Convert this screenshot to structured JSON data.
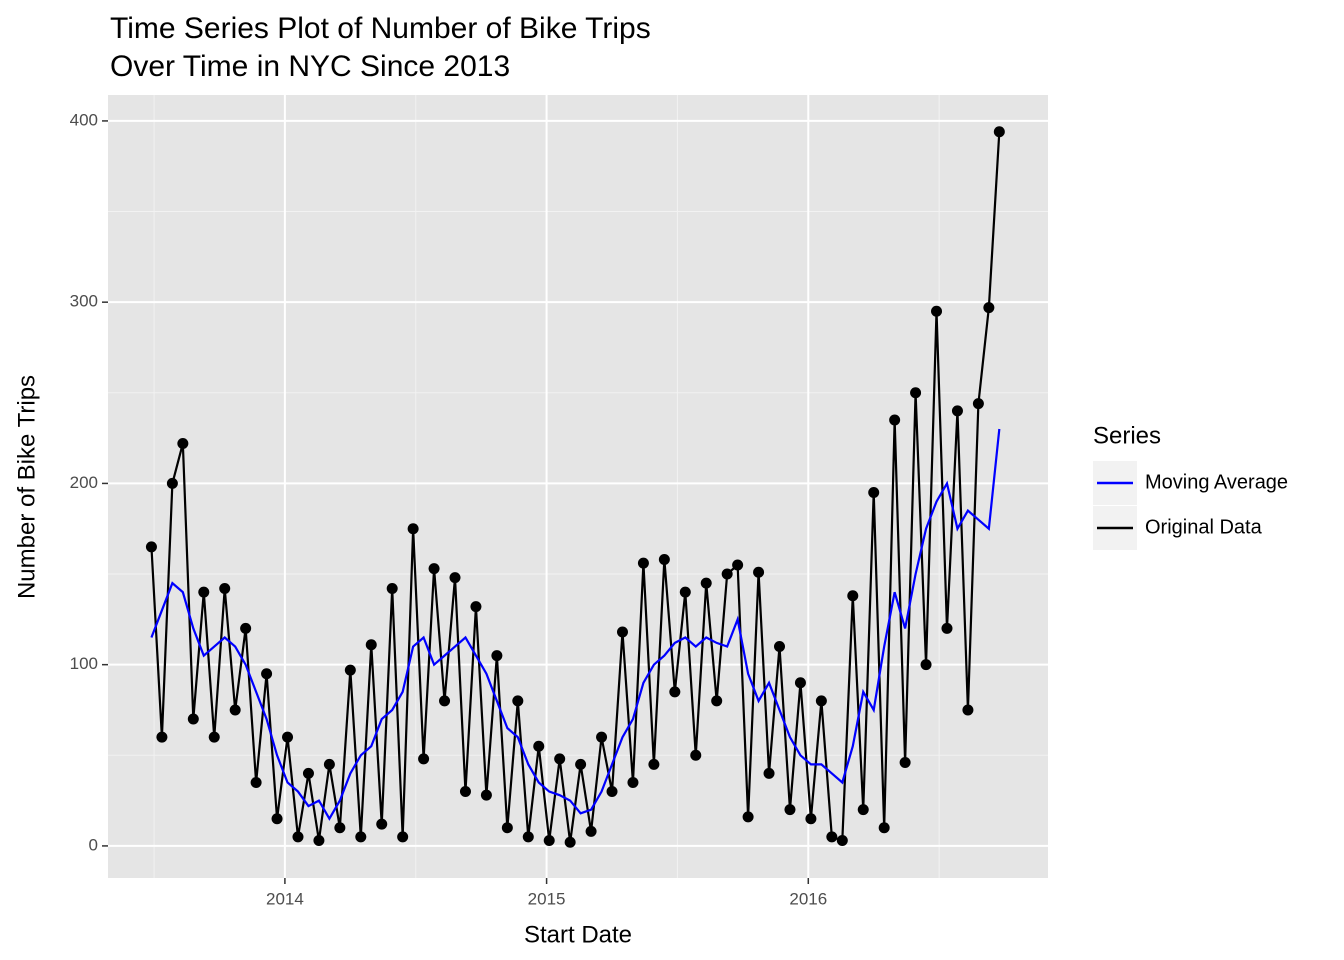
{
  "chart_data": {
    "type": "line",
    "title": [
      "Time Series Plot of Number of Bike Trips",
      " Over Time in NYC Since 2013"
    ],
    "x_label": "Start Date",
    "y_label": "Number of Bike Trips",
    "legend_title": "Series",
    "legend_position": "right",
    "grid": true,
    "xlim": [
      2013.324,
      2016.916
    ],
    "xticks": [
      2014,
      2015,
      2016
    ],
    "ylim": [
      -17.7,
      414.3
    ],
    "yticks": [
      0,
      100,
      200,
      300,
      400
    ],
    "x": [
      2013.49,
      2013.53,
      2013.57,
      2013.61,
      2013.65,
      2013.69,
      2013.73,
      2013.77,
      2013.81,
      2013.85,
      2013.89,
      2013.93,
      2013.97,
      2014.01,
      2014.05,
      2014.09,
      2014.13,
      2014.17,
      2014.21,
      2014.25,
      2014.29,
      2014.33,
      2014.37,
      2014.41,
      2014.45,
      2014.49,
      2014.53,
      2014.57,
      2014.61,
      2014.65,
      2014.69,
      2014.73,
      2014.77,
      2014.81,
      2014.85,
      2014.89,
      2014.93,
      2014.97,
      2015.01,
      2015.05,
      2015.09,
      2015.13,
      2015.17,
      2015.21,
      2015.25,
      2015.29,
      2015.33,
      2015.37,
      2015.41,
      2015.45,
      2015.49,
      2015.53,
      2015.57,
      2015.61,
      2015.65,
      2015.69,
      2015.73,
      2015.77,
      2015.81,
      2015.85,
      2015.89,
      2015.93,
      2015.97,
      2016.01,
      2016.05,
      2016.09,
      2016.13,
      2016.17,
      2016.21,
      2016.25,
      2016.29,
      2016.33,
      2016.37,
      2016.41,
      2016.45,
      2016.49,
      2016.53,
      2016.57,
      2016.61,
      2016.65,
      2016.69,
      2016.73
    ],
    "series": [
      {
        "name": "Moving Average",
        "color": "#0000ff",
        "markers": false,
        "values": [
          115,
          130,
          145,
          140,
          120,
          105,
          110,
          115,
          110,
          100,
          85,
          70,
          50,
          35,
          30,
          22,
          25,
          15,
          25,
          40,
          50,
          55,
          70,
          75,
          85,
          110,
          115,
          100,
          105,
          110,
          115,
          105,
          95,
          80,
          65,
          60,
          45,
          35,
          30,
          28,
          25,
          18,
          20,
          30,
          45,
          60,
          70,
          90,
          100,
          105,
          112,
          115,
          110,
          115,
          112,
          110,
          125,
          95,
          80,
          90,
          75,
          60,
          50,
          45,
          45,
          40,
          35,
          55,
          85,
          75,
          110,
          140,
          120,
          150,
          175,
          190,
          200,
          175,
          185,
          180,
          175,
          230
        ]
      },
      {
        "name": "Original Data",
        "color": "#000000",
        "markers": true,
        "values": [
          165,
          60,
          200,
          222,
          70,
          140,
          60,
          142,
          75,
          120,
          35,
          95,
          15,
          60,
          5,
          40,
          3,
          45,
          10,
          97,
          5,
          111,
          12,
          142,
          5,
          175,
          48,
          153,
          80,
          148,
          30,
          132,
          28,
          105,
          10,
          80,
          5,
          55,
          3,
          48,
          2,
          45,
          8,
          60,
          30,
          118,
          35,
          156,
          45,
          158,
          85,
          140,
          50,
          145,
          80,
          150,
          155,
          16,
          151,
          40,
          110,
          20,
          90,
          15,
          80,
          5,
          3,
          138,
          20,
          195,
          10,
          235,
          46,
          250,
          100,
          295,
          120,
          240,
          75,
          244,
          297,
          394
        ]
      }
    ]
  }
}
